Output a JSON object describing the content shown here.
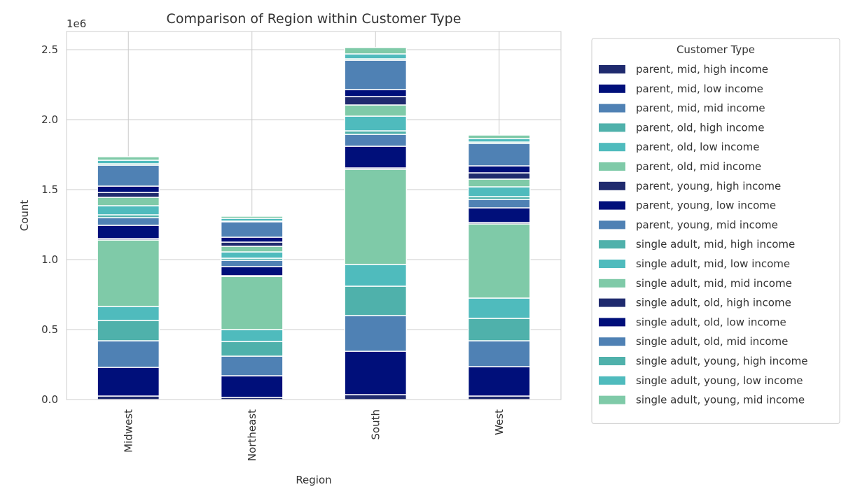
{
  "chart_data": {
    "type": "bar",
    "stacked": true,
    "title": "Comparison of Region within Customer Type",
    "xlabel": "Region",
    "ylabel": "Count",
    "y_offset_label": "1e6",
    "ylim": [
      0,
      2.63
    ],
    "y_ticks": [
      0.0,
      0.5,
      1.0,
      1.5,
      2.0,
      2.5
    ],
    "y_tick_labels": [
      "0.0",
      "0.5",
      "1.0",
      "1.5",
      "2.0",
      "2.5"
    ],
    "grid": true,
    "legend_title": "Customer Type",
    "legend_position": "outside-right",
    "categories": [
      "Midwest",
      "Northeast",
      "South",
      "West"
    ],
    "series": [
      {
        "name": "parent, mid, high income",
        "color": "#1f2a6e",
        "values": [
          0.025,
          0.015,
          0.035,
          0.025
        ]
      },
      {
        "name": "parent, mid, low income",
        "color": "#000f7a",
        "values": [
          0.205,
          0.155,
          0.31,
          0.21
        ]
      },
      {
        "name": "parent, mid, mid income",
        "color": "#4f81b4",
        "values": [
          0.19,
          0.14,
          0.255,
          0.185
        ]
      },
      {
        "name": "parent, old, high income",
        "color": "#4fb1ab",
        "values": [
          0.145,
          0.105,
          0.21,
          0.16
        ]
      },
      {
        "name": "parent, old, low income",
        "color": "#4fbbbd",
        "values": [
          0.1,
          0.085,
          0.155,
          0.145
        ]
      },
      {
        "name": "parent, old, mid income",
        "color": "#7fcaa8",
        "values": [
          0.475,
          0.38,
          0.68,
          0.53
        ]
      },
      {
        "name": "parent, young, high income",
        "color": "#1f2a6e",
        "values": [
          0.01,
          0.005,
          0.01,
          0.01
        ]
      },
      {
        "name": "parent, young, low income",
        "color": "#000f7a",
        "values": [
          0.095,
          0.065,
          0.155,
          0.105
        ]
      },
      {
        "name": "parent, young, mid income",
        "color": "#4f81b4",
        "values": [
          0.055,
          0.045,
          0.085,
          0.06
        ]
      },
      {
        "name": "single adult, mid, high income",
        "color": "#4fb1ab",
        "values": [
          0.02,
          0.015,
          0.025,
          0.02
        ]
      },
      {
        "name": "single adult, mid, low income",
        "color": "#4fbbbd",
        "values": [
          0.065,
          0.045,
          0.105,
          0.07
        ]
      },
      {
        "name": "single adult, mid, mid income",
        "color": "#7fcaa8",
        "values": [
          0.06,
          0.04,
          0.08,
          0.055
        ]
      },
      {
        "name": "single adult, old, high income",
        "color": "#1f2a6e",
        "values": [
          0.035,
          0.03,
          0.06,
          0.045
        ]
      },
      {
        "name": "single adult, old, low income",
        "color": "#000f7a",
        "values": [
          0.045,
          0.035,
          0.05,
          0.05
        ]
      },
      {
        "name": "single adult, old, mid income",
        "color": "#4f81b4",
        "values": [
          0.15,
          0.11,
          0.21,
          0.16
        ]
      },
      {
        "name": "single adult, young, high income",
        "color": "#4fb1ab",
        "values": [
          0.01,
          0.005,
          0.01,
          0.01
        ]
      },
      {
        "name": "single adult, young, low income",
        "color": "#4fbbbd",
        "values": [
          0.025,
          0.02,
          0.035,
          0.025
        ]
      },
      {
        "name": "single adult, young, mid income",
        "color": "#7fcaa8",
        "values": [
          0.025,
          0.015,
          0.045,
          0.025
        ]
      }
    ]
  }
}
